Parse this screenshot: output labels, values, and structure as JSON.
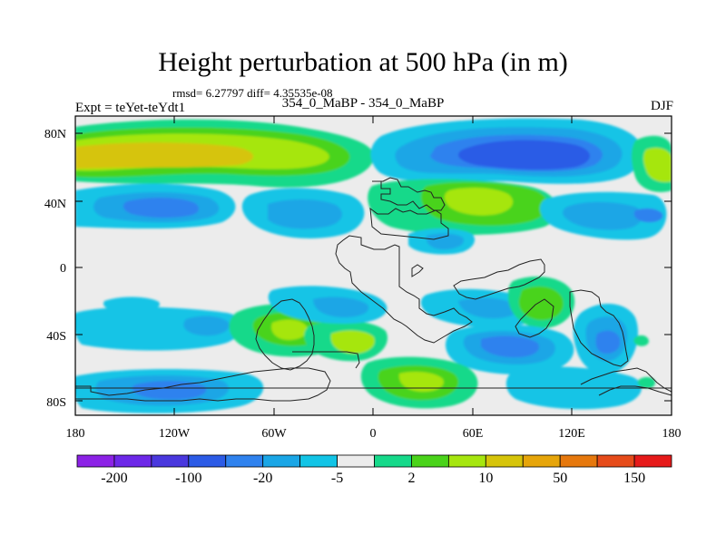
{
  "header": {
    "title": "Height perturbation at 500 hPa (in m)",
    "stats": "rmsd= 6.27797 diff= 4.35535e-08",
    "left_label": "Expt = teYet-teYdt1",
    "center_label": "354_0_MaBP - 354_0_MaBP",
    "right_label": "DJF"
  },
  "map": {
    "lat_ticks": [
      "80N",
      "40N",
      "0",
      "40S",
      "80S"
    ],
    "lon_ticks": [
      "180",
      "120W",
      "60W",
      "0",
      "60E",
      "120E",
      "180"
    ]
  },
  "colorbar": {
    "colors": [
      "#8c22e6",
      "#6d28e8",
      "#4a38de",
      "#2c5be6",
      "#2f82ee",
      "#1aa6e6",
      "#12c4e6",
      "#ececec",
      "#16d98a",
      "#4ad31a",
      "#a6e60f",
      "#d6c40a",
      "#e6a50a",
      "#e6780d",
      "#e64b1a",
      "#e61a1a"
    ],
    "labels": [
      "-200",
      "-100",
      "-20",
      "-5",
      "2",
      "10",
      "50",
      "150"
    ]
  }
}
